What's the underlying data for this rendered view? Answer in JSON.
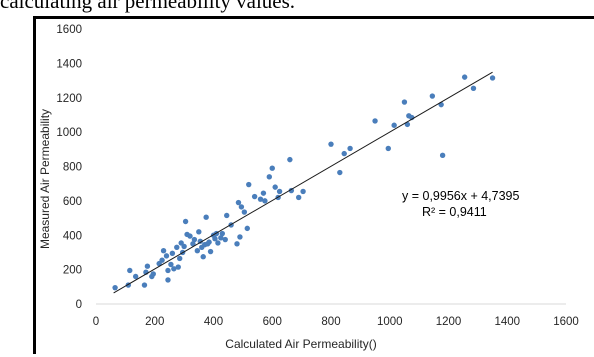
{
  "caption": "calculating air permeability values.",
  "chart_data": {
    "type": "scatter",
    "title": "",
    "xlabel": "Calculated Air Permeability()",
    "ylabel": "Measured Air Permeability",
    "xlim": [
      0,
      1600
    ],
    "ylim": [
      0,
      1600
    ],
    "xticks": [
      0,
      200,
      400,
      600,
      800,
      1000,
      1200,
      1400,
      1600
    ],
    "yticks": [
      0,
      200,
      400,
      600,
      800,
      1000,
      1200,
      1400,
      1600
    ],
    "grid": false,
    "legend": "none",
    "point_color": "#4a7ebb",
    "trendline": {
      "slope": 0.9956,
      "intercept": 4.7395,
      "x_range": [
        60,
        1350
      ]
    },
    "equation": "y = 0,9956x + 4,7395",
    "r_squared": "R² = 0,9411",
    "points": [
      [
        65,
        95
      ],
      [
        110,
        110
      ],
      [
        115,
        195
      ],
      [
        135,
        160
      ],
      [
        165,
        110
      ],
      [
        170,
        185
      ],
      [
        175,
        220
      ],
      [
        190,
        160
      ],
      [
        195,
        175
      ],
      [
        215,
        235
      ],
      [
        225,
        255
      ],
      [
        230,
        310
      ],
      [
        240,
        280
      ],
      [
        245,
        140
      ],
      [
        245,
        195
      ],
      [
        255,
        230
      ],
      [
        260,
        295
      ],
      [
        265,
        205
      ],
      [
        275,
        330
      ],
      [
        280,
        215
      ],
      [
        285,
        265
      ],
      [
        290,
        355
      ],
      [
        295,
        300
      ],
      [
        300,
        335
      ],
      [
        305,
        480
      ],
      [
        310,
        405
      ],
      [
        320,
        395
      ],
      [
        330,
        350
      ],
      [
        335,
        375
      ],
      [
        345,
        310
      ],
      [
        350,
        420
      ],
      [
        355,
        365
      ],
      [
        360,
        330
      ],
      [
        365,
        275
      ],
      [
        370,
        345
      ],
      [
        375,
        505
      ],
      [
        380,
        350
      ],
      [
        385,
        360
      ],
      [
        390,
        305
      ],
      [
        400,
        400
      ],
      [
        405,
        380
      ],
      [
        410,
        410
      ],
      [
        415,
        355
      ],
      [
        425,
        385
      ],
      [
        430,
        410
      ],
      [
        440,
        375
      ],
      [
        445,
        515
      ],
      [
        460,
        460
      ],
      [
        480,
        350
      ],
      [
        485,
        590
      ],
      [
        490,
        390
      ],
      [
        495,
        565
      ],
      [
        505,
        535
      ],
      [
        515,
        440
      ],
      [
        520,
        695
      ],
      [
        540,
        625
      ],
      [
        560,
        610
      ],
      [
        570,
        645
      ],
      [
        575,
        600
      ],
      [
        590,
        740
      ],
      [
        600,
        790
      ],
      [
        610,
        680
      ],
      [
        620,
        620
      ],
      [
        625,
        655
      ],
      [
        660,
        840
      ],
      [
        665,
        660
      ],
      [
        690,
        620
      ],
      [
        705,
        655
      ],
      [
        800,
        930
      ],
      [
        830,
        765
      ],
      [
        845,
        875
      ],
      [
        865,
        905
      ],
      [
        950,
        1065
      ],
      [
        995,
        905
      ],
      [
        1015,
        1040
      ],
      [
        1050,
        1175
      ],
      [
        1060,
        1045
      ],
      [
        1065,
        1095
      ],
      [
        1075,
        1085
      ],
      [
        1145,
        1210
      ],
      [
        1175,
        1160
      ],
      [
        1180,
        865
      ],
      [
        1255,
        1320
      ],
      [
        1285,
        1255
      ],
      [
        1350,
        1315
      ]
    ]
  }
}
